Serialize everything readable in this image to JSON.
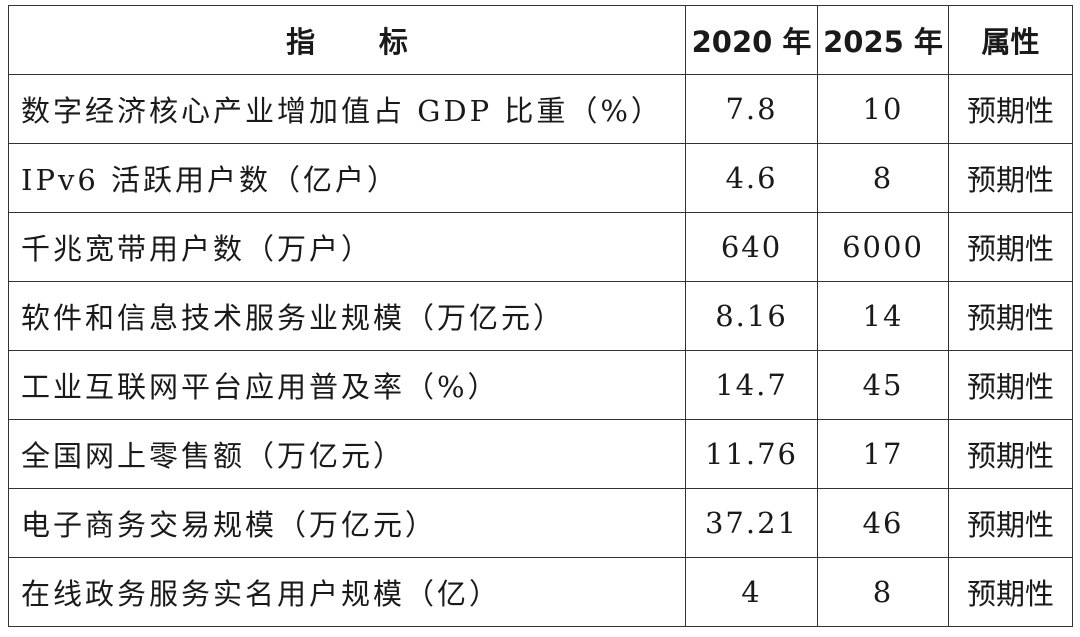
{
  "table": {
    "header": [
      "指标",
      "2020 年",
      "2025 年",
      "属性"
    ],
    "rows": [
      [
        "数字经济核心产业增加值占 GDP 比重（%）",
        "7.8",
        "10",
        "预期性"
      ],
      [
        "IPv6 活跃用户数（亿户）",
        "4.6",
        "8",
        "预期性"
      ],
      [
        "千兆宽带用户数（万户）",
        "640",
        "6000",
        "预期性"
      ],
      [
        "软件和信息技术服务业规模（万亿元）",
        "8.16",
        "14",
        "预期性"
      ],
      [
        "工业互联网平台应用普及率（%）",
        "14.7",
        "45",
        "预期性"
      ],
      [
        "全国网上零售额（万亿元）",
        "11.76",
        "17",
        "预期性"
      ],
      [
        "电子商务交易规模（万亿元）",
        "37.21",
        "46",
        "预期性"
      ],
      [
        "在线政务服务实名用户规模（亿）",
        "4",
        "8",
        "预期性"
      ]
    ]
  }
}
